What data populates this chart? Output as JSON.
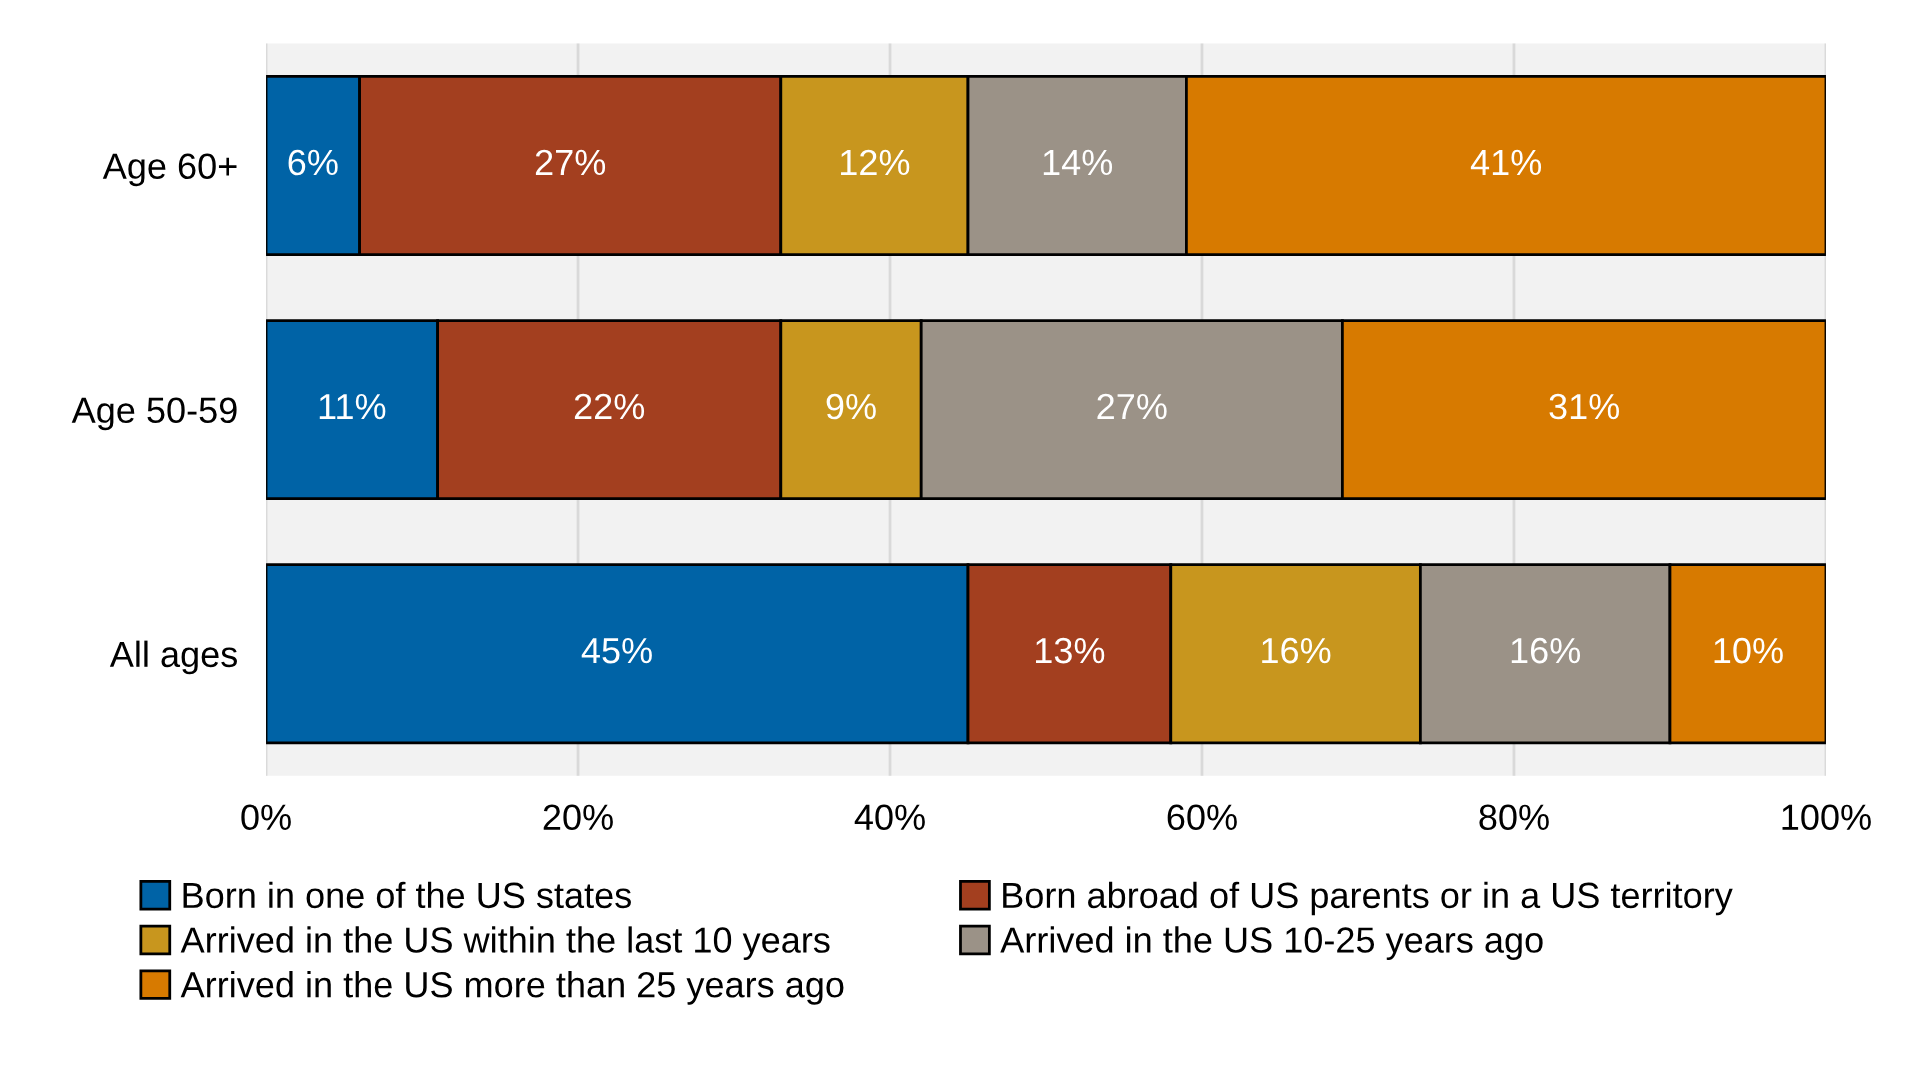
{
  "chart_data": {
    "type": "bar",
    "orientation": "horizontal",
    "stacked": true,
    "categories": [
      "Age 60+",
      "Age 50-59",
      "All ages"
    ],
    "series": [
      {
        "name": "Born in one of the US states",
        "color": "#0063a6",
        "values": [
          6,
          11,
          45
        ],
        "value_labels": [
          "6%",
          "11%",
          "45%"
        ]
      },
      {
        "name": "Born abroad of US parents or in a US territory",
        "color": "#a33f1f",
        "values": [
          27,
          22,
          13
        ],
        "value_labels": [
          "27%",
          "22%",
          "13%"
        ]
      },
      {
        "name": "Arrived in the US within the last 10 years",
        "color": "#c8961e",
        "values": [
          12,
          9,
          16
        ],
        "value_labels": [
          "12%",
          "9%",
          "16%"
        ]
      },
      {
        "name": "Arrived in the US 10-25 years ago",
        "color": "#9b9287",
        "values": [
          14,
          27,
          16
        ],
        "value_labels": [
          "14%",
          "27%",
          "16%"
        ]
      },
      {
        "name": "Arrived in the US more than 25 years ago",
        "color": "#d77a00",
        "values": [
          41,
          31,
          10
        ],
        "value_labels": [
          "41%",
          "31%",
          "10%"
        ]
      }
    ],
    "xlim": [
      0,
      100
    ],
    "xticks": [
      {
        "value": 0,
        "label": "0%"
      },
      {
        "value": 20,
        "label": "20%"
      },
      {
        "value": 40,
        "label": "40%"
      },
      {
        "value": 60,
        "label": "60%"
      },
      {
        "value": 80,
        "label": "80%"
      },
      {
        "value": 100,
        "label": "100%"
      }
    ],
    "grid": "x",
    "legend": "bottom"
  }
}
